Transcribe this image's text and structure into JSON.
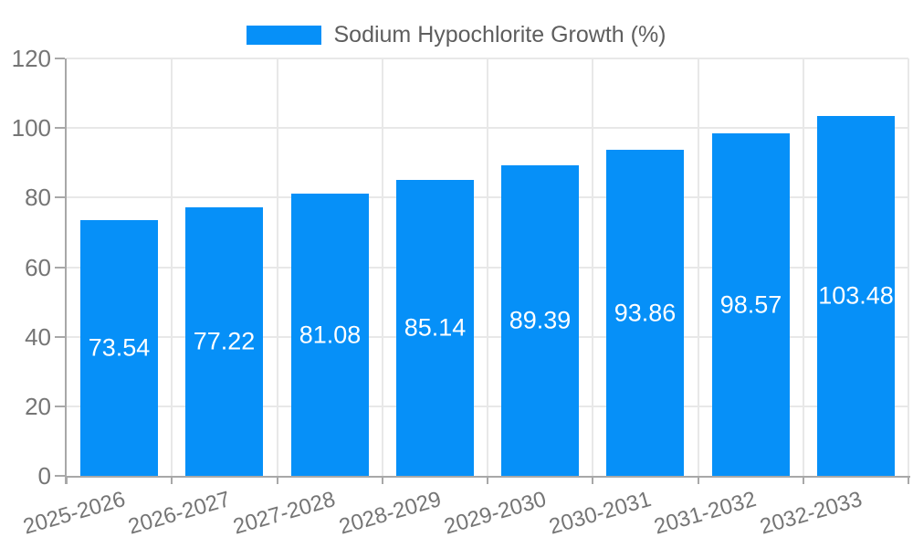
{
  "chart_data": {
    "type": "bar",
    "title": "Sodium Hypochlorite Growth (%)",
    "legend": [
      "Sodium Hypochlorite Growth (%)"
    ],
    "legend_position": "top-center",
    "categories": [
      "2025-2026",
      "2026-2027",
      "2027-2028",
      "2028-2029",
      "2029-2030",
      "2030-2031",
      "2031-2032",
      "2032-2033"
    ],
    "values": [
      73.54,
      77.22,
      81.08,
      85.14,
      89.39,
      93.86,
      98.57,
      103.48
    ],
    "value_labels": [
      "73.54",
      "77.22",
      "81.08",
      "85.14",
      "89.39",
      "93.86",
      "98.57",
      "103.48"
    ],
    "xlabel": "",
    "ylabel": "",
    "ylim": [
      0,
      120
    ],
    "ytick_step": 20,
    "yticks": [
      0,
      20,
      40,
      60,
      80,
      100,
      120
    ],
    "grid": true,
    "x_label_rotation_deg": -16,
    "colors": {
      "bar": "#0690f8",
      "bar_value_text": "#ffffff",
      "axis_text": "#757575",
      "legend_text": "#5e5e5e",
      "gridline": "#e8e8e8",
      "axis_line": "#a8a8a8",
      "background": "#ffffff"
    }
  }
}
